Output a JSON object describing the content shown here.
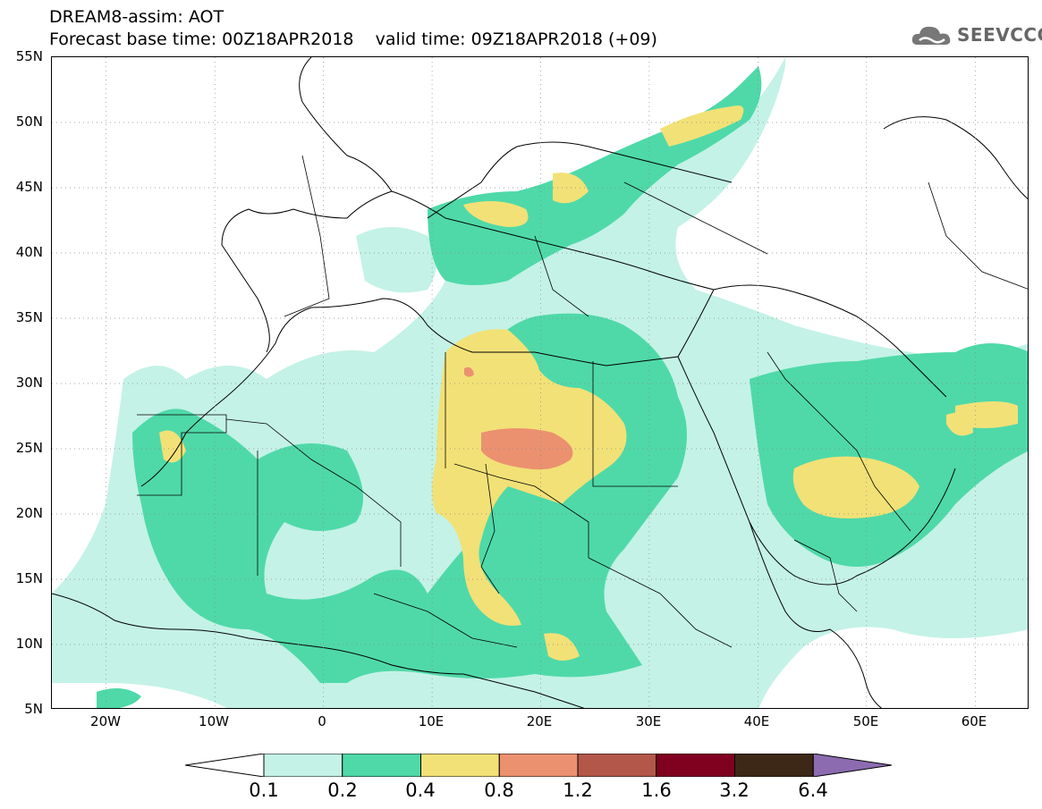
{
  "header": {
    "line1": "DREAM8-assim: AOT",
    "line2": "Forecast base time: 00Z18APR2018    valid time: 09Z18APR2018 (+09)"
  },
  "logo": {
    "text": "SEEVCCC",
    "icon": "cloud-icon"
  },
  "map": {
    "lat_labels": [
      "55N",
      "50N",
      "45N",
      "40N",
      "35N",
      "30N",
      "25N",
      "20N",
      "15N",
      "10N",
      "5N"
    ],
    "lon_labels": [
      "20W",
      "10W",
      "0",
      "10E",
      "20E",
      "30E",
      "40E",
      "50E",
      "60E"
    ],
    "lat_range": [
      5,
      55
    ],
    "lon_range": [
      -25,
      65
    ]
  },
  "colorbar": {
    "labels": [
      "0.1",
      "0.2",
      "0.4",
      "0.8",
      "1.2",
      "1.6",
      "3.2",
      "6.4"
    ],
    "colors": [
      "#ffffff",
      "#c4f2e6",
      "#4fd9a8",
      "#f2e177",
      "#eb9170",
      "#b2574a",
      "#800020",
      "#3d2817",
      "#8c6bb1"
    ]
  }
}
